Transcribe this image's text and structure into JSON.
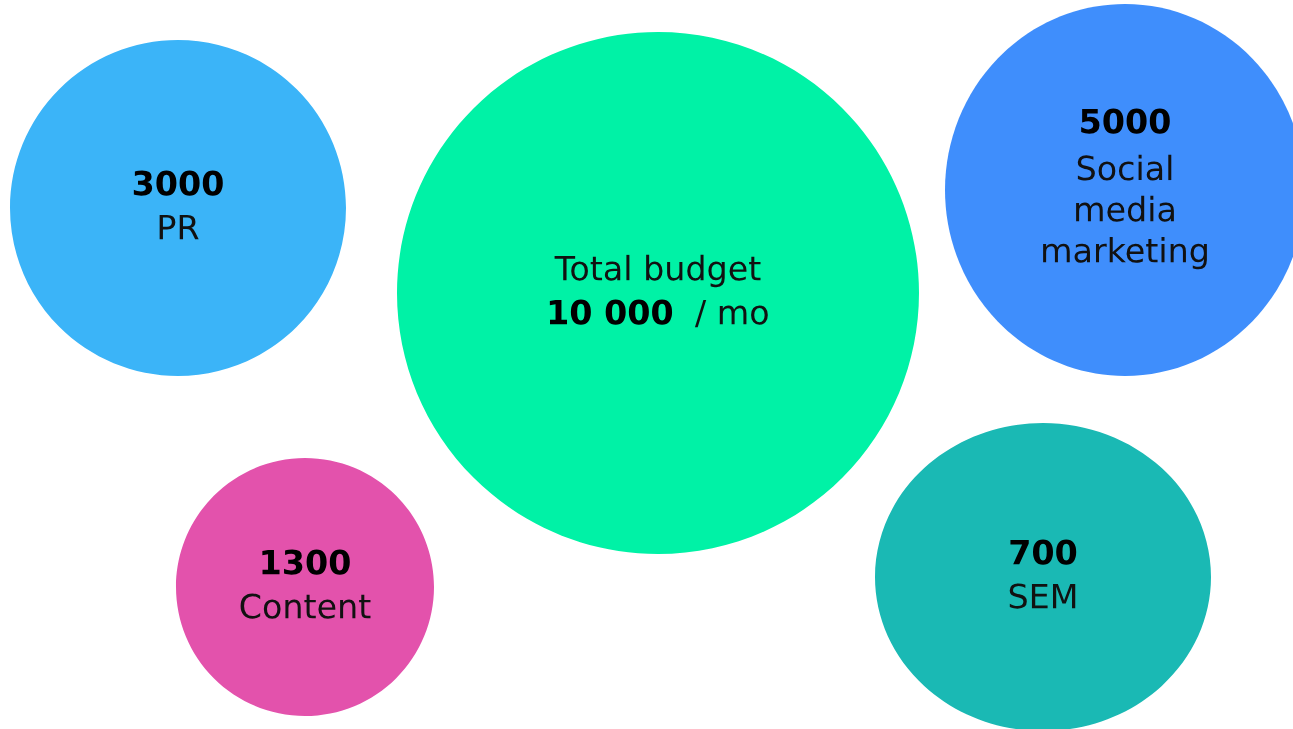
{
  "chart_data": {
    "type": "other",
    "categories": [
      "Total budget",
      "PR",
      "Social media marketing",
      "Content",
      "SEM"
    ],
    "values": [
      10000,
      3000,
      5000,
      1300,
      700
    ],
    "data_labels": true,
    "colors": [
      "#00f2a6",
      "#3bb4f8",
      "#3f8efc",
      "#e352ac",
      "#1ab9b4"
    ],
    "annotations": [
      "/ mo"
    ]
  }
}
